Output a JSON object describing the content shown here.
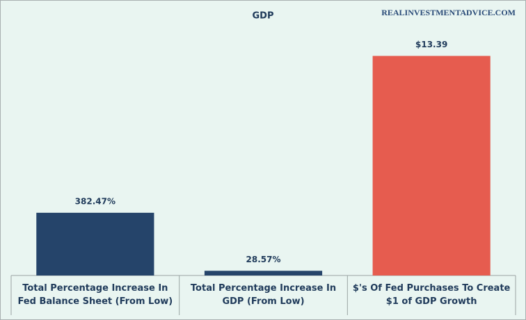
{
  "chart_data": {
    "type": "bar",
    "title": "GDP",
    "watermark": "REALINVESTMENTADVICE.COM",
    "categories": [
      "Total Percentage Increase In Fed Balance Sheet (From Low)",
      "Total Percentage Increase In GDP (From Low)",
      "$'s Of Fed Purchases To Create $1 of GDP Growth"
    ],
    "values": [
      3.8247,
      0.2857,
      13.39
    ],
    "value_labels": [
      "382.47%",
      "28.57%",
      "$13.39"
    ],
    "colors": [
      "#25446a",
      "#25446a",
      "#e65c4f"
    ],
    "ylim": [
      0,
      14
    ]
  }
}
